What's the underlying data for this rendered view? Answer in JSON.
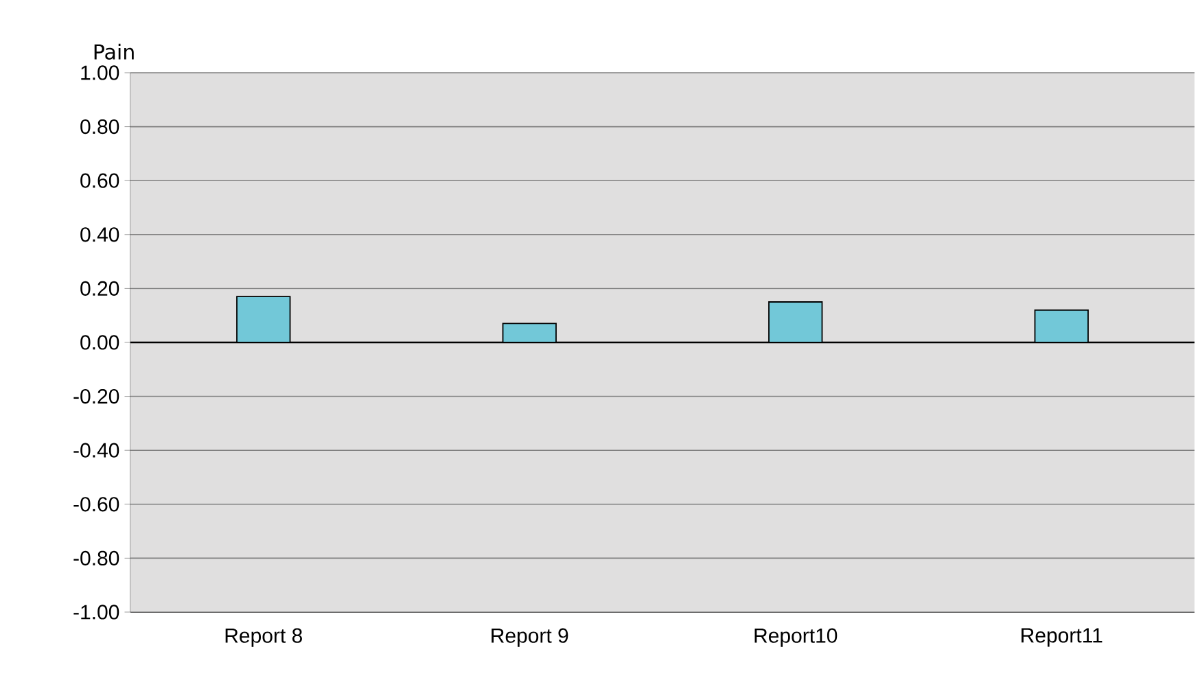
{
  "chart_data": {
    "type": "bar",
    "ylabel": "Pain",
    "categories": [
      "Report 8",
      "Report 9",
      "Report10",
      "Report11"
    ],
    "values": [
      0.17,
      0.07,
      0.15,
      0.12
    ],
    "color": "#72c8d8",
    "ylim": [
      -1.0,
      1.0
    ],
    "yticks": [
      {
        "value": -1.0,
        "label": "-1.00"
      },
      {
        "value": -0.8,
        "label": "-0.80"
      },
      {
        "value": -0.6,
        "label": "-0.60"
      },
      {
        "value": -0.4,
        "label": "-0.40"
      },
      {
        "value": -0.2,
        "label": "-0.20"
      },
      {
        "value": 0.0,
        "label": "0.00"
      },
      {
        "value": 0.2,
        "label": "0.20"
      },
      {
        "value": 0.4,
        "label": "0.40"
      },
      {
        "value": 0.6,
        "label": "0.60"
      },
      {
        "value": 0.8,
        "label": "0.80"
      },
      {
        "value": 1.0,
        "label": "1.00"
      }
    ],
    "ref_lines": [
      {
        "axis": "y",
        "value": 0.0,
        "color": "#000000"
      }
    ],
    "grid": "y"
  }
}
